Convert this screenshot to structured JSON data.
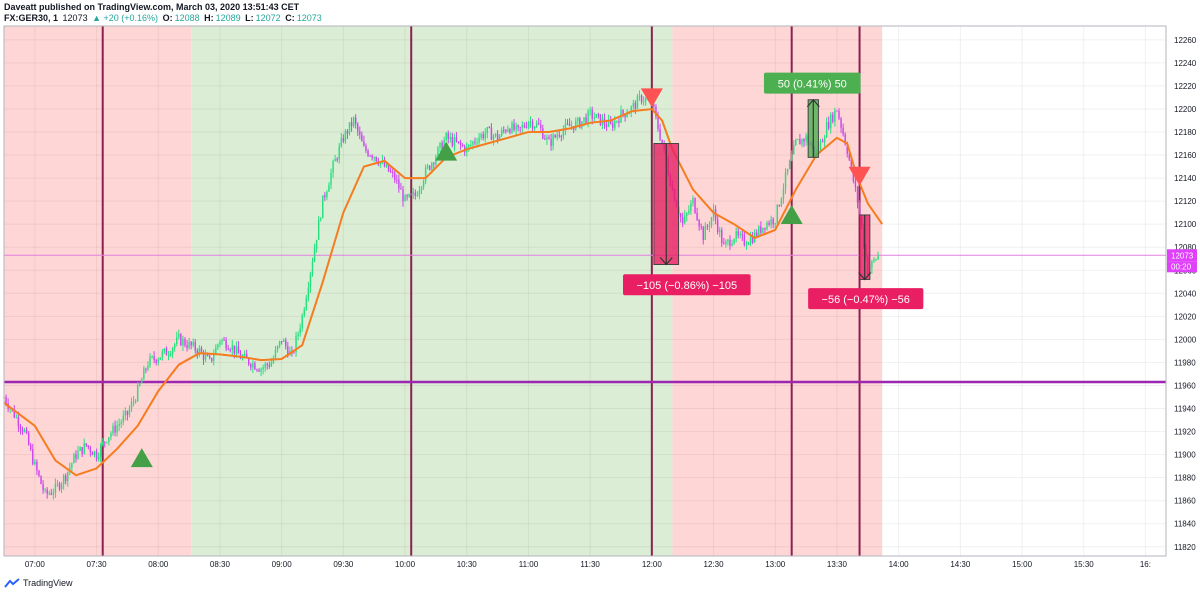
{
  "header": {
    "publisher": "Daveatt published on TradingView.com, March 03, 2020 13:51:43 CET",
    "symbol": "FX:GER30, 1",
    "last": "12073",
    "change": "▲ +20 (+0.16%)",
    "o_label": "O:",
    "o": "12088",
    "h_label": "H:",
    "h": "12089",
    "l_label": "L:",
    "l": "12072",
    "c_label": "C:",
    "c": "12073"
  },
  "footer": {
    "brand": "TradingView"
  },
  "colors": {
    "up": "#26e07f",
    "down": "#cc44ee",
    "ema": "#f57c1f",
    "bg_red": "#ffd6d6",
    "bg_green": "#dcedd5",
    "vline": "#8c2050",
    "hline": "#9c27b0",
    "price_line": "#e080e0",
    "long_box": "#4caf50",
    "short_box": "#e91e63"
  },
  "chart_data": {
    "type": "candlestick",
    "title": "",
    "xlabel": "",
    "ylabel": "",
    "x_ticks": [
      "07:00",
      "07:30",
      "08:00",
      "08:30",
      "09:00",
      "09:30",
      "10:00",
      "10:30",
      "11:00",
      "11:30",
      "12:00",
      "12:30",
      "13:00",
      "13:30",
      "14:00",
      "14:30",
      "15:00",
      "15:30",
      "16:"
    ],
    "y_ticks": [
      11820,
      11840,
      11860,
      11880,
      11900,
      11920,
      11940,
      11960,
      11980,
      12000,
      12020,
      12040,
      12060,
      12080,
      12100,
      12120,
      12140,
      12160,
      12180,
      12200,
      12220,
      12240,
      12260
    ],
    "ylim": [
      11812,
      12272
    ],
    "x_range": [
      "06:45",
      "16:10"
    ],
    "last_price": {
      "label": "12073",
      "value": 12073,
      "countdown": "00:20"
    },
    "support_line": 11963,
    "price_path": [
      [
        "06:45",
        11950
      ],
      [
        "06:50",
        11935
      ],
      [
        "06:55",
        11920
      ],
      [
        "07:00",
        11890
      ],
      [
        "07:05",
        11865
      ],
      [
        "07:10",
        11870
      ],
      [
        "07:15",
        11882
      ],
      [
        "07:20",
        11900
      ],
      [
        "07:25",
        11908
      ],
      [
        "07:30",
        11900
      ],
      [
        "07:35",
        11915
      ],
      [
        "07:40",
        11925
      ],
      [
        "07:45",
        11935
      ],
      [
        "07:50",
        11955
      ],
      [
        "07:55",
        11980
      ],
      [
        "08:00",
        11985
      ],
      [
        "08:05",
        11990
      ],
      [
        "08:10",
        12000
      ],
      [
        "08:15",
        11995
      ],
      [
        "08:20",
        11990
      ],
      [
        "08:25",
        11980
      ],
      [
        "08:30",
        12000
      ],
      [
        "08:35",
        11995
      ],
      [
        "08:40",
        11985
      ],
      [
        "08:45",
        11980
      ],
      [
        "08:50",
        11975
      ],
      [
        "08:55",
        11980
      ],
      [
        "09:00",
        12000
      ],
      [
        "09:05",
        11985
      ],
      [
        "09:10",
        12020
      ],
      [
        "09:15",
        12070
      ],
      [
        "09:20",
        12120
      ],
      [
        "09:25",
        12150
      ],
      [
        "09:30",
        12175
      ],
      [
        "09:35",
        12190
      ],
      [
        "09:40",
        12165
      ],
      [
        "09:45",
        12160
      ],
      [
        "09:50",
        12150
      ],
      [
        "09:55",
        12140
      ],
      [
        "10:00",
        12120
      ],
      [
        "10:05",
        12125
      ],
      [
        "10:10",
        12145
      ],
      [
        "10:15",
        12160
      ],
      [
        "10:20",
        12175
      ],
      [
        "10:25",
        12170
      ],
      [
        "10:30",
        12165
      ],
      [
        "10:35",
        12175
      ],
      [
        "10:40",
        12180
      ],
      [
        "10:45",
        12175
      ],
      [
        "10:50",
        12185
      ],
      [
        "10:55",
        12180
      ],
      [
        "11:00",
        12190
      ],
      [
        "11:05",
        12185
      ],
      [
        "11:10",
        12170
      ],
      [
        "11:15",
        12180
      ],
      [
        "11:20",
        12185
      ],
      [
        "11:25",
        12188
      ],
      [
        "11:30",
        12195
      ],
      [
        "11:35",
        12190
      ],
      [
        "11:40",
        12185
      ],
      [
        "11:45",
        12195
      ],
      [
        "11:50",
        12200
      ],
      [
        "11:55",
        12210
      ],
      [
        "12:00",
        12205
      ],
      [
        "12:05",
        12170
      ],
      [
        "12:10",
        12130
      ],
      [
        "12:15",
        12100
      ],
      [
        "12:20",
        12120
      ],
      [
        "12:25",
        12090
      ],
      [
        "12:30",
        12110
      ],
      [
        "12:35",
        12080
      ],
      [
        "12:40",
        12090
      ],
      [
        "12:45",
        12085
      ],
      [
        "12:50",
        12090
      ],
      [
        "12:55",
        12100
      ],
      [
        "13:00",
        12105
      ],
      [
        "13:05",
        12140
      ],
      [
        "13:10",
        12170
      ],
      [
        "13:15",
        12175
      ],
      [
        "13:20",
        12160
      ],
      [
        "13:25",
        12185
      ],
      [
        "13:30",
        12200
      ],
      [
        "13:35",
        12165
      ],
      [
        "13:40",
        12120
      ],
      [
        "13:45",
        12060
      ],
      [
        "13:50",
        12073
      ]
    ],
    "ema_path": [
      [
        "06:45",
        11945
      ],
      [
        "07:00",
        11925
      ],
      [
        "07:10",
        11895
      ],
      [
        "07:20",
        11882
      ],
      [
        "07:30",
        11888
      ],
      [
        "07:40",
        11905
      ],
      [
        "07:50",
        11925
      ],
      [
        "08:00",
        11955
      ],
      [
        "08:10",
        11978
      ],
      [
        "08:20",
        11988
      ],
      [
        "08:30",
        11987
      ],
      [
        "08:40",
        11985
      ],
      [
        "08:50",
        11982
      ],
      [
        "09:00",
        11983
      ],
      [
        "09:10",
        11995
      ],
      [
        "09:20",
        12050
      ],
      [
        "09:30",
        12110
      ],
      [
        "09:40",
        12150
      ],
      [
        "09:50",
        12155
      ],
      [
        "10:00",
        12140
      ],
      [
        "10:10",
        12140
      ],
      [
        "10:20",
        12158
      ],
      [
        "10:30",
        12165
      ],
      [
        "10:40",
        12170
      ],
      [
        "10:50",
        12175
      ],
      [
        "11:00",
        12180
      ],
      [
        "11:10",
        12180
      ],
      [
        "11:20",
        12183
      ],
      [
        "11:30",
        12188
      ],
      [
        "11:40",
        12190
      ],
      [
        "11:50",
        12198
      ],
      [
        "12:00",
        12200
      ],
      [
        "12:05",
        12190
      ],
      [
        "12:10",
        12165
      ],
      [
        "12:20",
        12130
      ],
      [
        "12:30",
        12110
      ],
      [
        "12:40",
        12100
      ],
      [
        "12:50",
        12088
      ],
      [
        "13:00",
        12095
      ],
      [
        "13:10",
        12130
      ],
      [
        "13:20",
        12160
      ],
      [
        "13:30",
        12175
      ],
      [
        "13:35",
        12170
      ],
      [
        "13:40",
        12140
      ],
      [
        "13:45",
        12118
      ],
      [
        "13:52",
        12100
      ]
    ],
    "sessions": [
      {
        "start": "06:45",
        "end": "08:16",
        "color": "red"
      },
      {
        "start": "08:16",
        "end": "12:10",
        "color": "green"
      },
      {
        "start": "12:10",
        "end": "13:52",
        "color": "red"
      }
    ],
    "vlines": [
      "07:33",
      "10:03",
      "12:00",
      "13:08",
      "13:41"
    ],
    "buy_signals": [
      [
        "07:52",
        11897
      ],
      [
        "10:20",
        12163
      ],
      [
        "13:08",
        12108
      ]
    ],
    "sell_signals": [
      [
        "12:00",
        12210
      ],
      [
        "13:41",
        12142
      ]
    ],
    "measures": [
      {
        "label": "−105 (−0.86%) −105",
        "direction": "short",
        "x0": "12:01",
        "x1": "12:13",
        "from": 12170,
        "to": 12065,
        "label_x": "12:17",
        "label_y": 12047
      },
      {
        "label": "50 (0.41%) 50",
        "direction": "long",
        "x0": "13:16",
        "x1": "13:21",
        "from": 12158,
        "to": 12208,
        "label_x": "13:18",
        "label_y": 12222
      },
      {
        "label": "−56 (−0.47%) −56",
        "direction": "short",
        "x0": "13:41",
        "x1": "13:46",
        "from": 12108,
        "to": 12052,
        "label_x": "13:44",
        "label_y": 12035
      }
    ]
  }
}
